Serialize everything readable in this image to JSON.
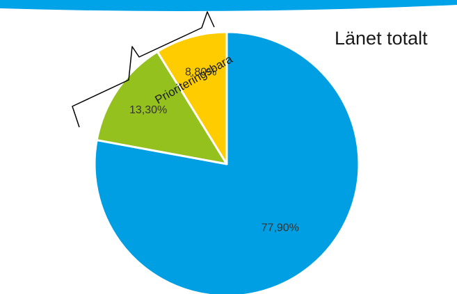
{
  "chart_data": {
    "type": "pie",
    "title": "Länet totalt",
    "slices": [
      {
        "label": "77,90%",
        "value": 77.9,
        "color": "#009FE3"
      },
      {
        "label": "13,30%",
        "value": 13.3,
        "color": "#95C11F"
      },
      {
        "label": "8,80%",
        "value": 8.8,
        "color": "#FFCC00"
      }
    ],
    "annotation": "Prioriteringsbara",
    "start_angle_deg": 0,
    "direction": "clockwise"
  },
  "colors": {
    "top_band": "#00A3E8",
    "slice_border": "#ffffff"
  }
}
